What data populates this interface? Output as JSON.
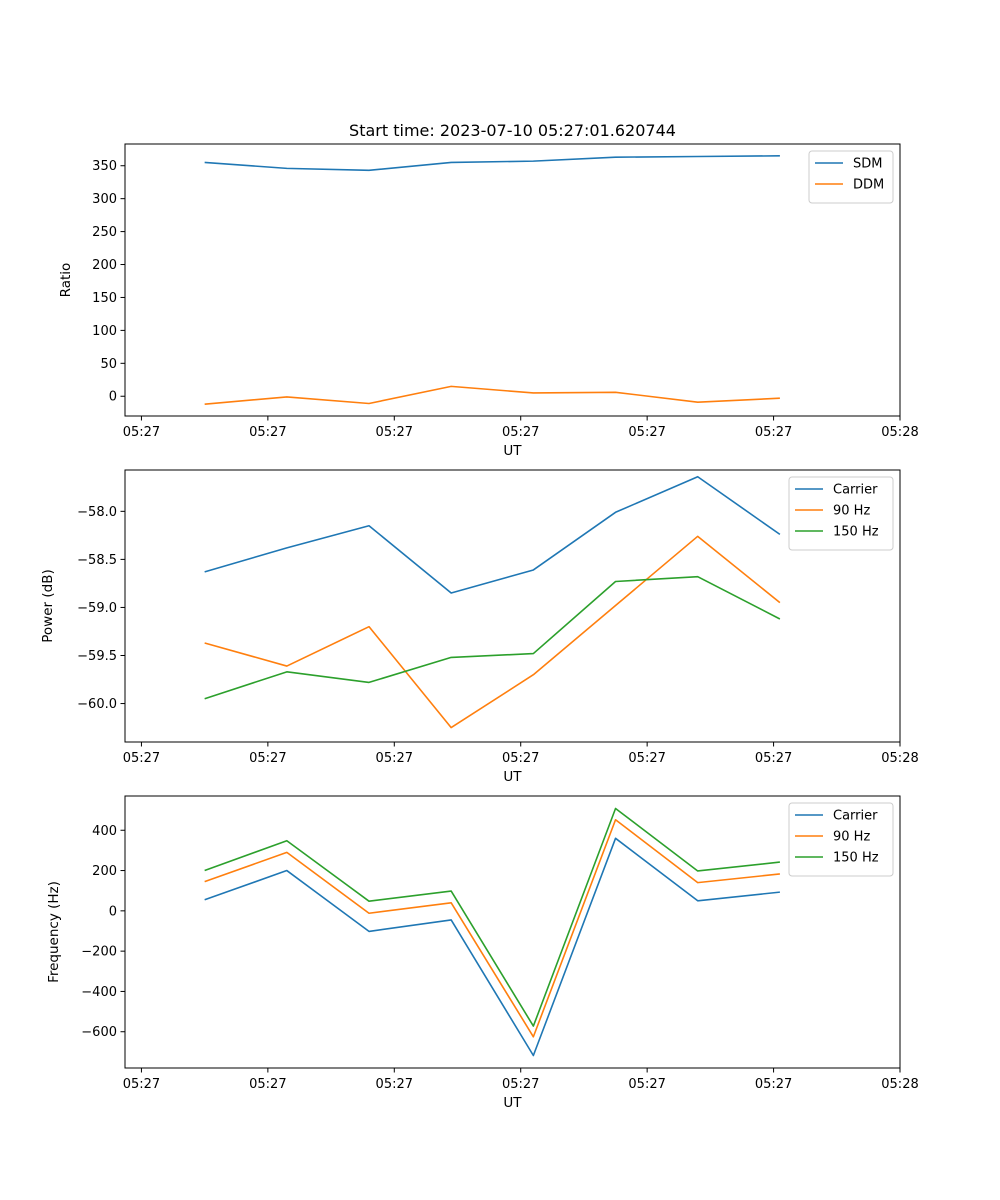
{
  "title": "Start time: 2023-07-10 05:27:01.620744",
  "chart_data": [
    {
      "type": "line",
      "title": "Start time: 2023-07-10 05:27:01.620744",
      "xlabel": "UT",
      "ylabel": "Ratio",
      "x_tick_labels": [
        "05:27",
        "05:27",
        "05:27",
        "05:27",
        "05:27",
        "05:27",
        "05:28"
      ],
      "x_ticks": [
        0,
        1,
        2,
        3,
        4,
        5,
        6
      ],
      "xlim": [
        -0.13,
        6.0
      ],
      "x": [
        0.5,
        1.15,
        1.8,
        2.45,
        3.1,
        3.75,
        4.4,
        5.05
      ],
      "ylim": [
        -30,
        383
      ],
      "y_ticks": [
        0,
        50,
        100,
        150,
        200,
        250,
        300,
        350
      ],
      "y_tick_labels": [
        "0",
        "50",
        "100",
        "150",
        "200",
        "250",
        "300",
        "350"
      ],
      "legend_position": "upper right",
      "series": [
        {
          "name": "SDM",
          "color": "#1f77b4",
          "values": [
            355,
            346,
            343,
            355,
            357,
            363,
            364,
            365
          ]
        },
        {
          "name": "DDM",
          "color": "#ff7f0e",
          "values": [
            -12,
            -1,
            -11,
            15,
            5,
            6,
            -9,
            -3
          ]
        }
      ]
    },
    {
      "type": "line",
      "title": "",
      "xlabel": "UT",
      "ylabel": "Power (dB)",
      "x_tick_labels": [
        "05:27",
        "05:27",
        "05:27",
        "05:27",
        "05:27",
        "05:27",
        "05:28"
      ],
      "x_ticks": [
        0,
        1,
        2,
        3,
        4,
        5,
        6
      ],
      "xlim": [
        -0.13,
        6.0
      ],
      "x": [
        0.5,
        1.15,
        1.8,
        2.45,
        3.1,
        3.75,
        4.4,
        5.05
      ],
      "ylim": [
        -60.4,
        -57.57
      ],
      "y_ticks": [
        -60.0,
        -59.5,
        -59.0,
        -58.5,
        -58.0
      ],
      "y_tick_labels": [
        "−60.0",
        "−59.5",
        "−59.0",
        "−58.5",
        "−58.0"
      ],
      "legend_position": "upper right",
      "series": [
        {
          "name": "Carrier",
          "color": "#1f77b4",
          "values": [
            -58.63,
            -58.38,
            -58.15,
            -58.85,
            -58.61,
            -58.01,
            -57.64,
            -58.24
          ]
        },
        {
          "name": "90 Hz",
          "color": "#ff7f0e",
          "values": [
            -59.37,
            -59.61,
            -59.2,
            -60.25,
            -59.7,
            -58.98,
            -58.26,
            -58.95
          ]
        },
        {
          "name": "150 Hz",
          "color": "#2ca02c",
          "values": [
            -59.95,
            -59.67,
            -59.78,
            -59.52,
            -59.48,
            -58.73,
            -58.68,
            -59.12
          ]
        }
      ]
    },
    {
      "type": "line",
      "title": "",
      "xlabel": "UT",
      "ylabel": "Frequency (Hz)",
      "x_tick_labels": [
        "05:27",
        "05:27",
        "05:27",
        "05:27",
        "05:27",
        "05:27",
        "05:28"
      ],
      "x_ticks": [
        0,
        1,
        2,
        3,
        4,
        5,
        6
      ],
      "xlim": [
        -0.13,
        6.0
      ],
      "x": [
        0.5,
        1.15,
        1.8,
        2.45,
        3.1,
        3.75,
        4.4,
        5.05
      ],
      "ylim": [
        -780,
        570
      ],
      "y_ticks": [
        -600,
        -400,
        -200,
        0,
        200,
        400
      ],
      "y_tick_labels": [
        "−600",
        "−400",
        "−200",
        "0",
        "200",
        "400"
      ],
      "legend_position": "upper right",
      "series": [
        {
          "name": "Carrier",
          "color": "#1f77b4",
          "values": [
            55,
            200,
            -102,
            -45,
            -718,
            360,
            50,
            93
          ]
        },
        {
          "name": "90 Hz",
          "color": "#ff7f0e",
          "values": [
            145,
            290,
            -12,
            40,
            -625,
            452,
            140,
            183
          ]
        },
        {
          "name": "150 Hz",
          "color": "#2ca02c",
          "values": [
            200,
            348,
            48,
            98,
            -572,
            508,
            198,
            242
          ]
        }
      ]
    }
  ]
}
